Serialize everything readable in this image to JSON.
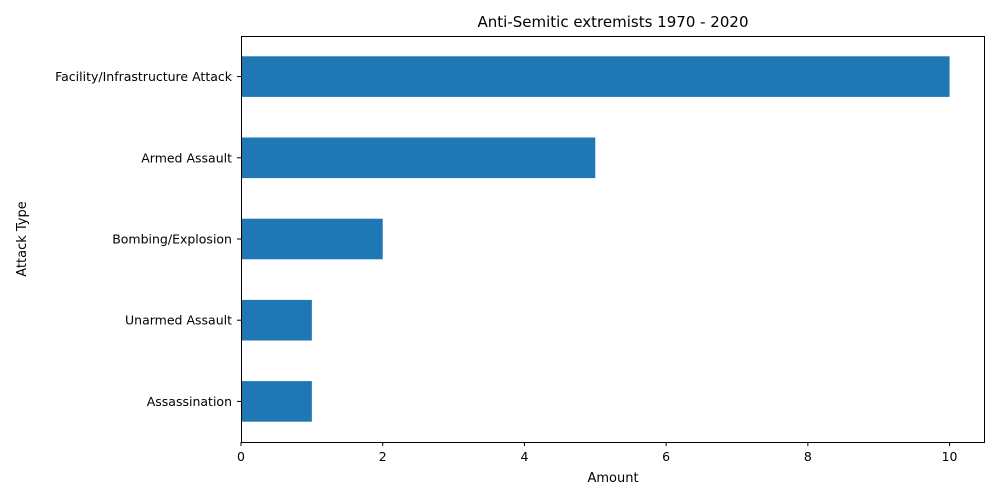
{
  "chart_data": {
    "type": "bar",
    "orientation": "horizontal",
    "title": "Anti-Semitic extremists 1970 - 2020",
    "xlabel": "Amount",
    "ylabel": "Attack Type",
    "categories": [
      "Facility/Infrastructure Attack",
      "Armed Assault",
      "Bombing/Explosion",
      "Unarmed Assault",
      "Assassination"
    ],
    "values": [
      10,
      5,
      2,
      1,
      1
    ],
    "xlim": [
      0,
      10.5
    ],
    "xticks": [
      "0",
      "2",
      "4",
      "6",
      "8",
      "10"
    ],
    "grid": false,
    "legend": "none",
    "bar_color": "#1f77b4"
  }
}
